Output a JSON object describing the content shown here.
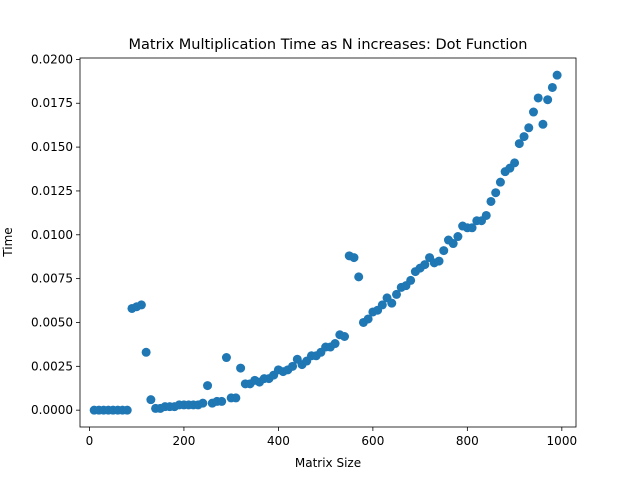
{
  "chart_data": {
    "type": "scatter",
    "title": "Matrix Multiplication Time as N increases: Dot Function",
    "xlabel": "Matrix Size",
    "ylabel": "Time",
    "xlim": [
      -20,
      1030
    ],
    "ylim": [
      -0.00096,
      0.02008
    ],
    "xticks": [
      0,
      200,
      400,
      600,
      800,
      1000
    ],
    "xtick_labels": [
      "0",
      "200",
      "400",
      "600",
      "800",
      "1000"
    ],
    "yticks": [
      0,
      0.0025,
      0.005,
      0.0075,
      0.01,
      0.0125,
      0.015,
      0.0175,
      0.02
    ],
    "ytick_labels": [
      "0.0000",
      "0.0025",
      "0.0050",
      "0.0075",
      "0.0100",
      "0.0125",
      "0.0150",
      "0.0175",
      "0.0200"
    ],
    "grid": false,
    "marker_color": "#1f77b4",
    "x": [
      10,
      20,
      30,
      40,
      50,
      60,
      70,
      80,
      90,
      100,
      110,
      120,
      130,
      140,
      150,
      160,
      170,
      180,
      190,
      200,
      210,
      220,
      230,
      240,
      250,
      260,
      270,
      280,
      290,
      300,
      310,
      320,
      330,
      340,
      350,
      360,
      370,
      380,
      390,
      400,
      410,
      420,
      430,
      440,
      450,
      460,
      470,
      480,
      490,
      500,
      510,
      520,
      530,
      540,
      550,
      560,
      570,
      580,
      590,
      600,
      610,
      620,
      630,
      640,
      650,
      660,
      670,
      680,
      690,
      700,
      710,
      720,
      730,
      740,
      750,
      760,
      770,
      780,
      790,
      800,
      810,
      820,
      830,
      840,
      850,
      860,
      870,
      880,
      890,
      900,
      910,
      920,
      930,
      940,
      950,
      960,
      970,
      980,
      990
    ],
    "y": [
      0.0,
      0.0,
      0.0,
      0.0,
      0.0,
      0.0,
      0.0,
      0.0,
      0.0058,
      0.0059,
      0.006,
      0.0033,
      0.0006,
      0.0001,
      0.0001,
      0.0002,
      0.0002,
      0.0002,
      0.0003,
      0.0003,
      0.0003,
      0.0003,
      0.0003,
      0.0004,
      0.0014,
      0.0004,
      0.0005,
      0.0005,
      0.003,
      0.0007,
      0.0007,
      0.0024,
      0.0015,
      0.0015,
      0.0017,
      0.0016,
      0.0018,
      0.0018,
      0.002,
      0.0023,
      0.0022,
      0.0023,
      0.0025,
      0.0029,
      0.0026,
      0.0028,
      0.0031,
      0.0031,
      0.0033,
      0.0036,
      0.0036,
      0.0038,
      0.0043,
      0.0042,
      0.0088,
      0.0087,
      0.0076,
      0.005,
      0.0052,
      0.0056,
      0.0057,
      0.006,
      0.0064,
      0.0061,
      0.0066,
      0.007,
      0.0071,
      0.0074,
      0.0079,
      0.0081,
      0.0083,
      0.0087,
      0.0084,
      0.0085,
      0.0091,
      0.0097,
      0.0095,
      0.0099,
      0.0105,
      0.0104,
      0.0104,
      0.0108,
      0.0108,
      0.0111,
      0.0119,
      0.0124,
      0.013,
      0.0136,
      0.0138,
      0.0141,
      0.0152,
      0.0156,
      0.0161,
      0.017,
      0.0178,
      0.0163,
      0.0177,
      0.0184,
      0.0191
    ]
  }
}
